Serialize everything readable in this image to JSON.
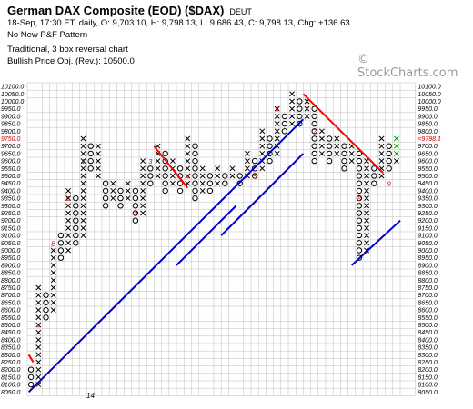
{
  "header": {
    "title": "German DAX Composite (EOD) ($DAX)",
    "exchange": "DEUT",
    "quote_line": "18-Sep, 17:30 ET, daily, O: 9,703.10, H: 9,798.13, L: 9,686.43, C: 9,798.13, Chg: +136.63",
    "pattern_line": "No New P&F Pattern",
    "chart_type_line": "Traditional, 3 box reversal chart",
    "price_objective_line": "Bullish Price Obj. (Rev.): 10500.0"
  },
  "watermark": "© StockCharts.com",
  "chart_data": {
    "type": "point-and-figure",
    "box_size": 50,
    "reversal": 3,
    "ylim": [
      8050,
      10100
    ],
    "y_tick_labels": [
      "10100.0",
      "10050.0",
      "10000.0",
      "9950.0",
      "9900.0",
      "9850.0",
      "9800.0",
      "9750.0",
      "9700.0",
      "9650.0",
      "9600.0",
      "9550.0",
      "9500.0",
      "9450.0",
      "9400.0",
      "9350.0",
      "9300.0",
      "9250.0",
      "9200.0",
      "9150.0",
      "9100.0",
      "9050.0",
      "9000.0",
      "8950.0",
      "8900.0",
      "8850.0",
      "8800.0",
      "8750.0",
      "8700.0",
      "8650.0",
      "8600.0",
      "8550.0",
      "8500.0",
      "8450.0",
      "8400.0",
      "8350.0",
      "8300.0",
      "8250.0",
      "8200.0",
      "8150.0",
      "8100.0",
      "8050.0"
    ],
    "current_price_label": "<9798.1",
    "highlight_left_label": "9750.0",
    "x_label": "14",
    "columns": [
      {
        "type": "O",
        "low": 8100,
        "high": 8200
      },
      {
        "type": "X",
        "low": 8100,
        "high": 8750
      },
      {
        "type": "O",
        "low": 8550,
        "high": 8700
      },
      {
        "type": "X",
        "low": 8600,
        "high": 9000
      },
      {
        "type": "O",
        "low": 8950,
        "high": 9100
      },
      {
        "type": "X",
        "low": 9000,
        "high": 9400
      },
      {
        "type": "O",
        "low": 9050,
        "high": 9350
      },
      {
        "type": "X",
        "low": 9100,
        "high": 9750
      },
      {
        "type": "O",
        "low": 9550,
        "high": 9700
      },
      {
        "type": "X",
        "low": 9500,
        "high": 9700
      },
      {
        "type": "O",
        "low": 9300,
        "high": 9450
      },
      {
        "type": "X",
        "low": 9350,
        "high": 9450
      },
      {
        "type": "O",
        "low": 9300,
        "high": 9400
      },
      {
        "type": "X",
        "low": 9350,
        "high": 9450
      },
      {
        "type": "O",
        "low": 9200,
        "high": 9400
      },
      {
        "type": "X",
        "low": 9250,
        "high": 9600
      },
      {
        "type": "O",
        "low": 9450,
        "high": 9550
      },
      {
        "type": "X",
        "low": 9500,
        "high": 9700
      },
      {
        "type": "O",
        "low": 9400,
        "high": 9650
      },
      {
        "type": "X",
        "low": 9450,
        "high": 9600
      },
      {
        "type": "O",
        "low": 9400,
        "high": 9550
      },
      {
        "type": "X",
        "low": 9450,
        "high": 9750
      },
      {
        "type": "O",
        "low": 9350,
        "high": 9700
      },
      {
        "type": "X",
        "low": 9400,
        "high": 9550
      },
      {
        "type": "O",
        "low": 9400,
        "high": 9500
      },
      {
        "type": "X",
        "low": 9450,
        "high": 9550
      },
      {
        "type": "O",
        "low": 9450,
        "high": 9500
      },
      {
        "type": "X",
        "low": 9500,
        "high": 9550
      },
      {
        "type": "O",
        "low": 9450,
        "high": 9500
      },
      {
        "type": "X",
        "low": 9500,
        "high": 9650
      },
      {
        "type": "O",
        "low": 9500,
        "high": 9600
      },
      {
        "type": "X",
        "low": 9550,
        "high": 9800
      },
      {
        "type": "O",
        "low": 9600,
        "high": 9750
      },
      {
        "type": "X",
        "low": 9650,
        "high": 9950
      },
      {
        "type": "O",
        "low": 9800,
        "high": 9900
      },
      {
        "type": "X",
        "low": 9850,
        "high": 10050
      },
      {
        "type": "O",
        "low": 9850,
        "high": 10000
      },
      {
        "type": "X",
        "low": 9900,
        "high": 10000
      },
      {
        "type": "O",
        "low": 9600,
        "high": 9950
      },
      {
        "type": "X",
        "low": 9650,
        "high": 9800
      },
      {
        "type": "O",
        "low": 9600,
        "high": 9750
      },
      {
        "type": "X",
        "low": 9650,
        "high": 9750
      },
      {
        "type": "O",
        "low": 9550,
        "high": 9700
      },
      {
        "type": "X",
        "low": 9600,
        "high": 9700
      },
      {
        "type": "O",
        "low": 8950,
        "high": 9650
      },
      {
        "type": "X",
        "low": 9000,
        "high": 9600
      },
      {
        "type": "O",
        "low": 9450,
        "high": 9550
      },
      {
        "type": "X",
        "low": 9500,
        "high": 9750
      },
      {
        "type": "O",
        "low": 9550,
        "high": 9700
      },
      {
        "type": "X",
        "low": 9600,
        "high": 9750
      }
    ],
    "month_markers": [
      {
        "label": "4",
        "value": 8500,
        "col": 1
      },
      {
        "label": "B",
        "value": 9050,
        "col": 3
      },
      {
        "label": "C",
        "value": 9350,
        "col": 5
      },
      {
        "label": "1",
        "value": 9600,
        "col": 7
      },
      {
        "label": "2",
        "value": 9250,
        "col": 14
      },
      {
        "label": "3",
        "value": 9600,
        "col": 16
      },
      {
        "label": "4",
        "value": 9500,
        "col": 21
      },
      {
        "label": "5",
        "value": 9500,
        "col": 30
      },
      {
        "label": "6",
        "value": 9950,
        "col": 33
      },
      {
        "label": "7",
        "value": 9800,
        "col": 38
      },
      {
        "label": "8",
        "value": 9350,
        "col": 44
      },
      {
        "label": "9",
        "value": 9450,
        "col": 48
      }
    ],
    "trend_lines": [
      {
        "color": "#ff0000",
        "points": [
          {
            "col": -0.3,
            "value": 8300
          },
          {
            "col": 0.3,
            "value": 8250
          }
        ]
      },
      {
        "color": "#ff0000",
        "points": [
          {
            "col": 16.5,
            "value": 9700
          },
          {
            "col": 21.0,
            "value": 9420
          }
        ]
      },
      {
        "color": "#ff0000",
        "points": [
          {
            "col": 36.5,
            "value": 10050
          },
          {
            "col": 47.2,
            "value": 9520
          }
        ]
      },
      {
        "color": "#0000cc",
        "points": [
          {
            "col": -0.3,
            "value": 8050
          },
          {
            "col": 36.5,
            "value": 9880
          }
        ]
      },
      {
        "color": "#0000cc",
        "points": [
          {
            "col": 19.5,
            "value": 8900
          },
          {
            "col": 27.5,
            "value": 9300
          }
        ]
      },
      {
        "color": "#0000cc",
        "points": [
          {
            "col": 25.5,
            "value": 9100
          },
          {
            "col": 36.5,
            "value": 9650
          }
        ]
      },
      {
        "color": "#0000cc",
        "points": [
          {
            "col": 43.0,
            "value": 8900
          },
          {
            "col": 49.5,
            "value": 9200
          }
        ]
      }
    ],
    "colors": {
      "grid": "#bdbdbd",
      "x": "#000000",
      "o": "#000000",
      "latest_x": "#00a000",
      "marker": "#cc0000",
      "current_price": "#cc0000"
    }
  }
}
